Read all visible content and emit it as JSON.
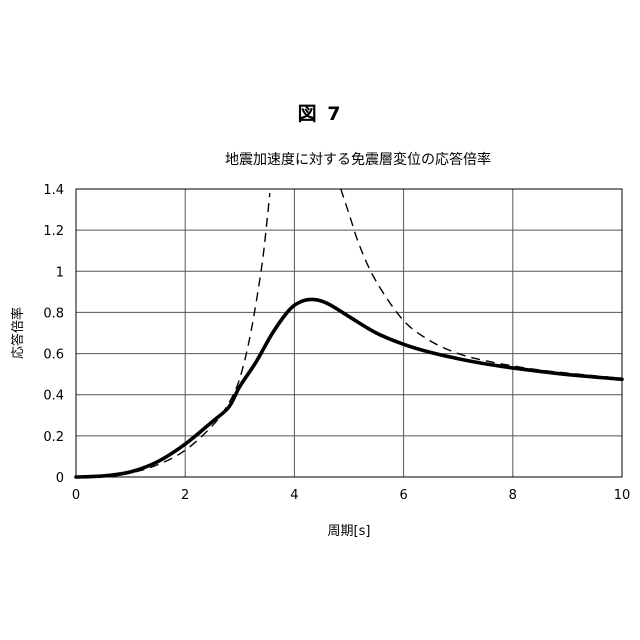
{
  "figure_label": "図 7",
  "chart_data": {
    "type": "line",
    "title": "地震加速度に対する免震層変位の応答倍率",
    "xlabel": "周期[s]",
    "ylabel": "応答倍率",
    "xlim": [
      0,
      10
    ],
    "ylim": [
      0,
      1.4
    ],
    "xticks": [
      0,
      2,
      4,
      6,
      8,
      10
    ],
    "xtick_labels": [
      "0",
      "2",
      "4",
      "6",
      "8",
      "10"
    ],
    "yticks": [
      0,
      0.2,
      0.4,
      0.6,
      0.8,
      1,
      1.2,
      1.4
    ],
    "ytick_labels": [
      "0",
      "0.2",
      "0.4",
      "0.6",
      "0.8",
      "1",
      "1.2",
      "1.4"
    ],
    "grid": true,
    "series": [
      {
        "style": "solid-thick",
        "color": "#000000",
        "x": [
          0,
          0.5,
          1.0,
          1.5,
          2.0,
          2.5,
          2.8,
          3.0,
          3.3,
          3.6,
          3.9,
          4.1,
          4.3,
          4.5,
          4.7,
          5.0,
          5.5,
          6.0,
          6.5,
          7.0,
          7.5,
          8.0,
          8.5,
          9.0,
          9.5,
          10.0
        ],
        "values": [
          0.0,
          0.005,
          0.025,
          0.075,
          0.16,
          0.27,
          0.34,
          0.44,
          0.56,
          0.7,
          0.81,
          0.85,
          0.863,
          0.855,
          0.83,
          0.78,
          0.7,
          0.645,
          0.605,
          0.575,
          0.55,
          0.53,
          0.513,
          0.498,
          0.486,
          0.475
        ]
      },
      {
        "style": "dashed",
        "color": "#000000",
        "x": [
          0,
          0.5,
          1.0,
          1.5,
          2.0,
          2.5,
          2.8,
          3.0,
          3.2,
          3.4,
          3.5,
          3.55
        ],
        "values": [
          0.0,
          0.004,
          0.02,
          0.06,
          0.13,
          0.25,
          0.36,
          0.48,
          0.7,
          1.02,
          1.25,
          1.38
        ]
      },
      {
        "style": "dashed",
        "color": "#000000",
        "x": [
          4.85,
          5.0,
          5.2,
          5.5,
          6.0,
          6.5,
          7.0,
          7.5,
          8.0,
          8.5,
          9.0,
          9.5,
          10.0
        ],
        "values": [
          1.4,
          1.28,
          1.12,
          0.95,
          0.76,
          0.66,
          0.6,
          0.565,
          0.54,
          0.52,
          0.505,
          0.492,
          0.48
        ]
      }
    ]
  }
}
